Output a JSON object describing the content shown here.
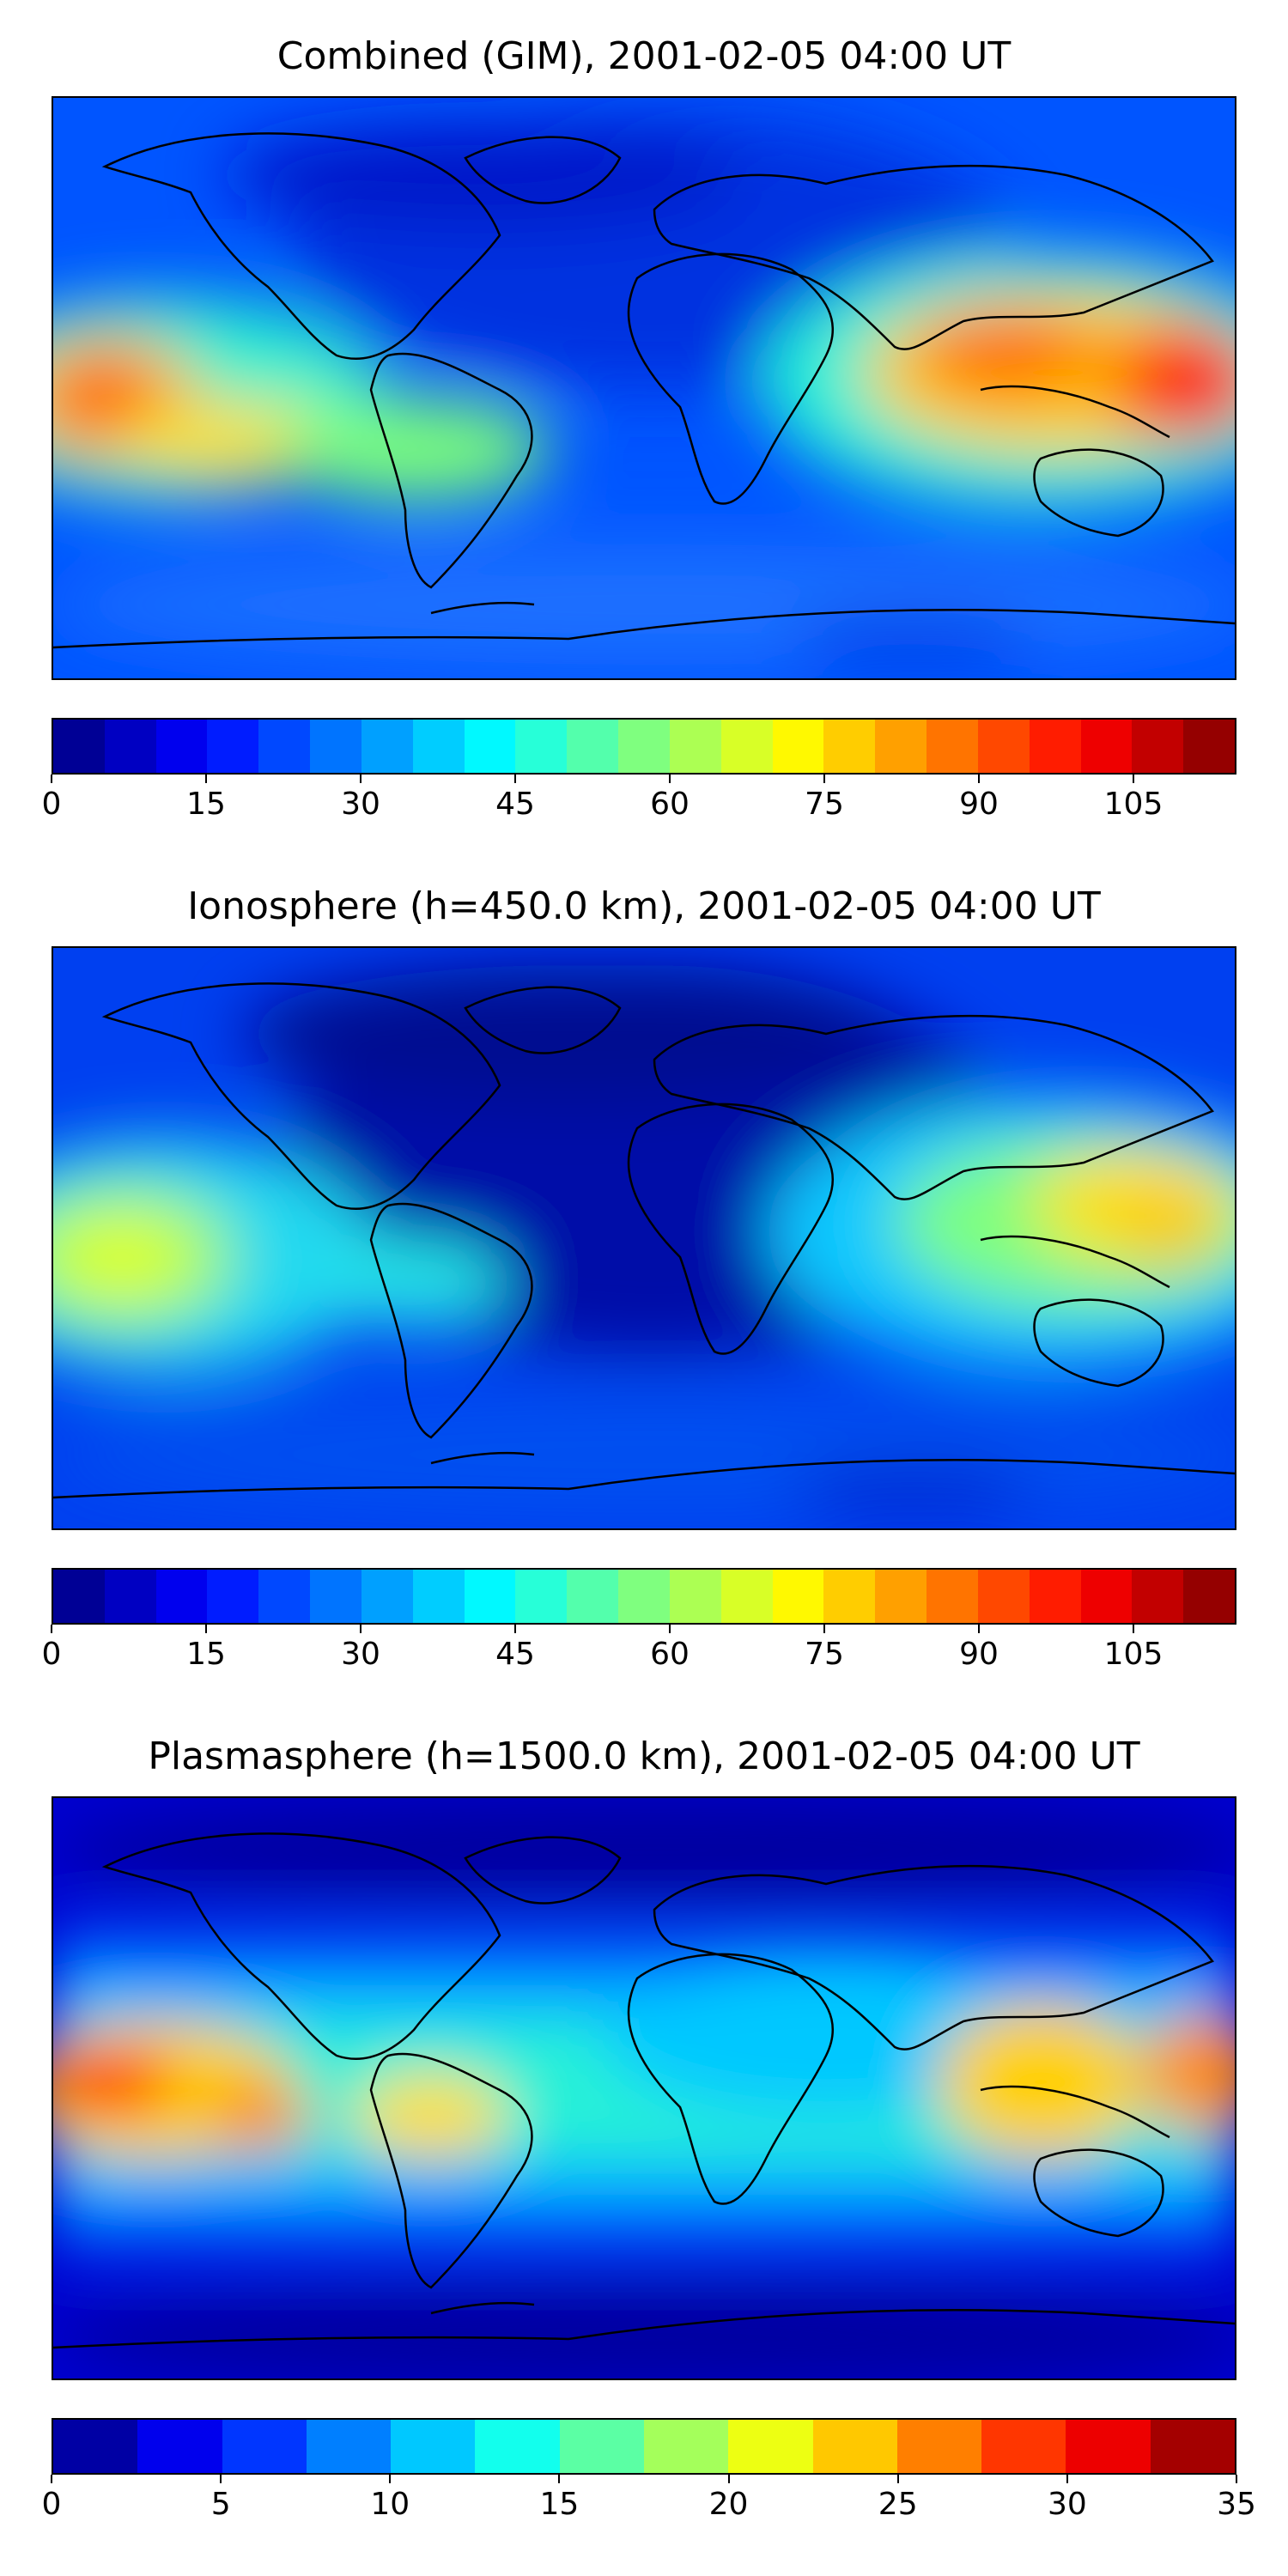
{
  "panels": [
    {
      "id": "combined",
      "title": "Combined (GIM), 2001-02-05 04:00 UT",
      "colorbar": {
        "min": 0,
        "max": 115,
        "step": 5,
        "tick_labels": [
          "0",
          "15",
          "30",
          "45",
          "60",
          "75",
          "90",
          "105"
        ],
        "tick_values": [
          0,
          15,
          30,
          45,
          60,
          75,
          90,
          105
        ]
      }
    },
    {
      "id": "ionosphere",
      "title": "Ionosphere  (h=450.0 km), 2001-02-05 04:00 UT",
      "colorbar": {
        "min": 0,
        "max": 115,
        "step": 5,
        "tick_labels": [
          "0",
          "15",
          "30",
          "45",
          "60",
          "75",
          "90",
          "105"
        ],
        "tick_values": [
          0,
          15,
          30,
          45,
          60,
          75,
          90,
          105
        ]
      }
    },
    {
      "id": "plasmasphere",
      "title": "Plasmasphere (h=1500.0 km), 2001-02-05 04:00 UT",
      "colorbar": {
        "min": 0,
        "max": 35,
        "step": 2.5,
        "tick_labels": [
          "0",
          "5",
          "10",
          "15",
          "20",
          "25",
          "30",
          "35"
        ],
        "tick_values": [
          0,
          5,
          10,
          15,
          20,
          25,
          30,
          35
        ]
      }
    }
  ],
  "colormap": "jet",
  "colors": {
    "jet_stops": [
      "#00007f",
      "#0000ff",
      "#007fff",
      "#00ffff",
      "#7fff7f",
      "#ffff00",
      "#ff7f00",
      "#ff0000",
      "#7f0000"
    ]
  }
}
